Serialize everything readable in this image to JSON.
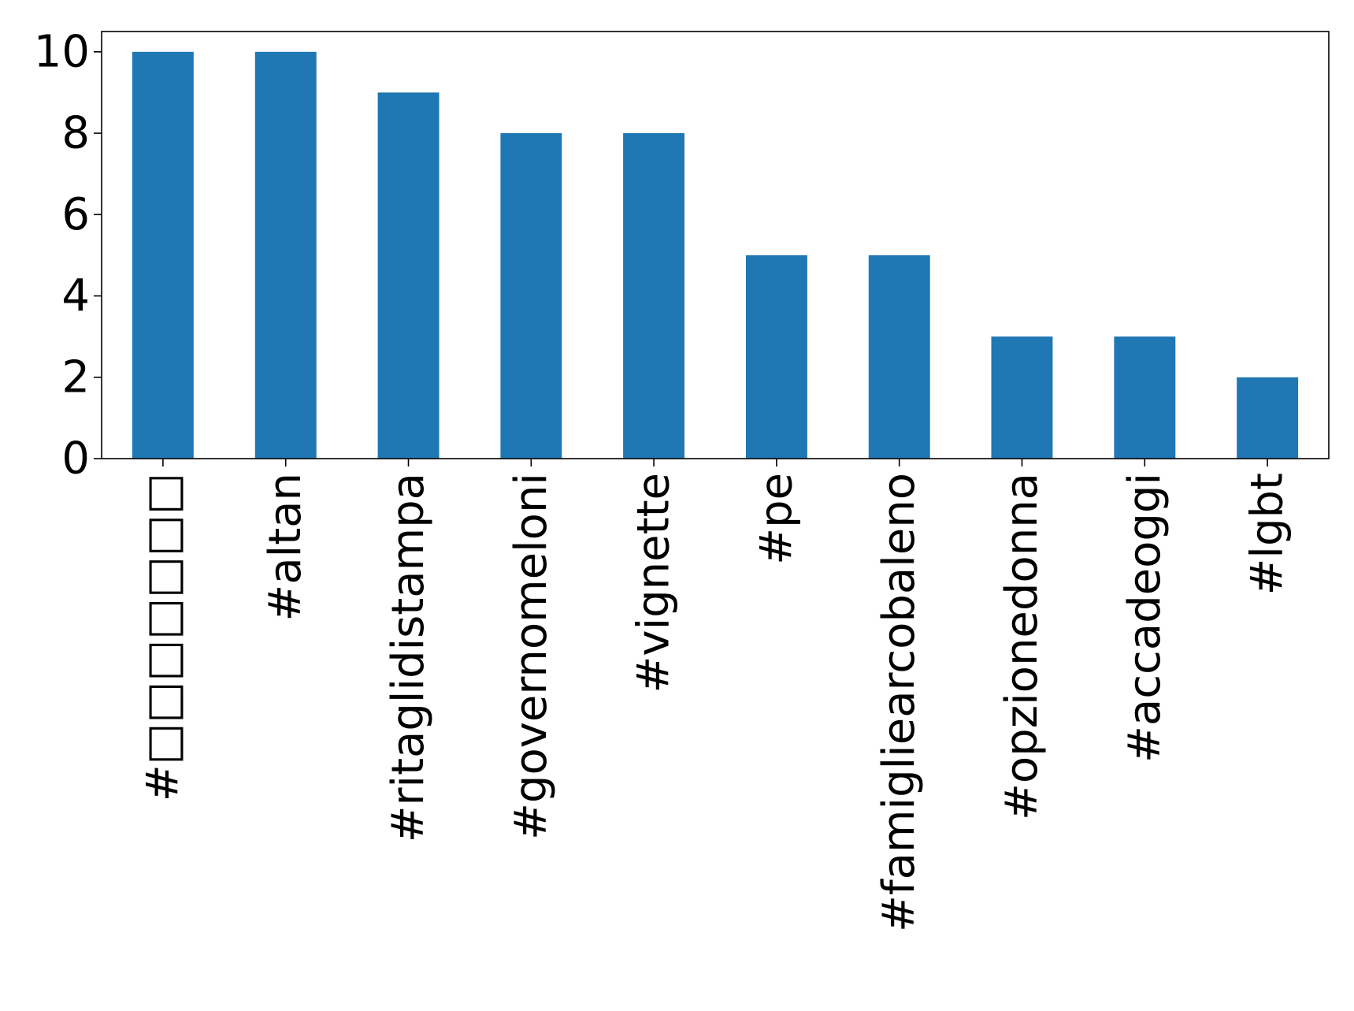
{
  "chart_data": {
    "type": "bar",
    "title": "",
    "xlabel": "",
    "ylabel": "",
    "categories": [
      "#□□□□□□□",
      "#altan",
      "#ritaglidistampa",
      "#governomeloni",
      "#vignette",
      "#pe",
      "#famigliearcobaleno",
      "#opzionedonna",
      "#accadeoggi",
      "#lgbt"
    ],
    "values": [
      10,
      10,
      9,
      8,
      8,
      5,
      5,
      3,
      3,
      2
    ],
    "ylim": [
      0,
      10.5
    ],
    "yticks": [
      0,
      2,
      4,
      6,
      8,
      10
    ],
    "ytick_labels": [
      "0",
      "2",
      "4",
      "6",
      "8",
      "10"
    ],
    "grid": false,
    "legend": "none",
    "bar_color": "#1f77b4"
  }
}
